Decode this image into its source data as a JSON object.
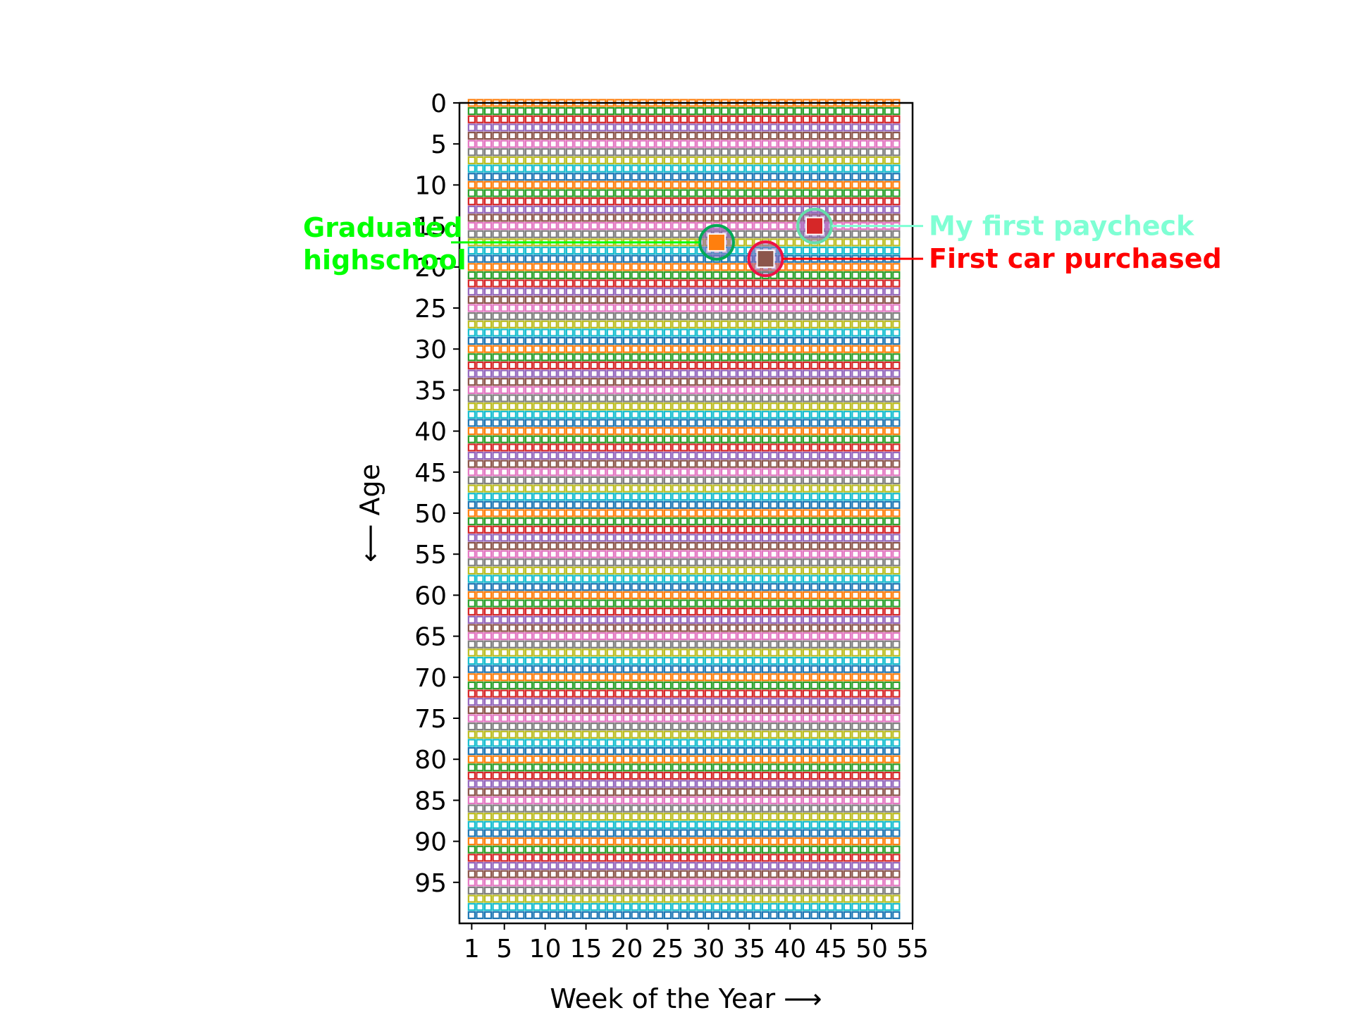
{
  "chart_data": {
    "type": "scatter",
    "title": "",
    "xlabel": "Week of the Year  ⟶",
    "ylabel": "⟵  Age",
    "xlim": [
      -0.5,
      55
    ],
    "ylim": [
      100,
      0
    ],
    "y_inverted": true,
    "xticks": [
      1,
      5,
      10,
      15,
      20,
      25,
      30,
      35,
      40,
      45,
      50,
      55
    ],
    "yticks": [
      0,
      5,
      10,
      15,
      20,
      25,
      30,
      35,
      40,
      45,
      50,
      55,
      60,
      65,
      70,
      75,
      80,
      85,
      90,
      95
    ],
    "grid": false,
    "marker": "square",
    "weeks_per_row": 53,
    "ages": 100,
    "row_colors": [
      "#ff7f0e",
      "#2ca02c",
      "#d62728",
      "#9467bd",
      "#8c564b",
      "#e377c2",
      "#7f7f7f",
      "#bcbd22",
      "#17becf",
      "#1f77b4"
    ],
    "annotations": [
      {
        "text": "Graduated\nhighschool",
        "week": 31,
        "age": 17,
        "color": "#00ff00",
        "side": "left",
        "highlight_color": "#00aa55",
        "square_color": "#ff7f0e"
      },
      {
        "text": "My first paycheck",
        "week": 43,
        "age": 15,
        "color": "#7fffd4",
        "side": "right",
        "highlight_color": "#66ddaa",
        "square_color": "#d62728"
      },
      {
        "text": "First car purchased",
        "week": 37,
        "age": 19,
        "color": "#ff0000",
        "side": "right",
        "highlight_color": "#ee1144",
        "square_color": "#8c564b"
      }
    ]
  }
}
